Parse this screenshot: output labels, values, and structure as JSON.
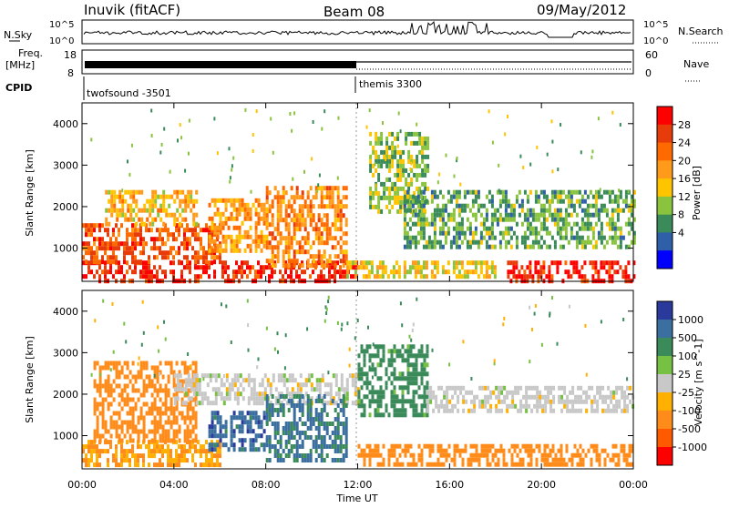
{
  "header": {
    "title": "Inuvik (fitACF)",
    "beam": "Beam 08",
    "date": "09/May/2012"
  },
  "top_panels": {
    "nsky_label": "N.Sky",
    "nsky_tick_top": "10^5",
    "nsky_tick_bottom": "10^0",
    "nsearch_label": "N.Search",
    "nsearch_tick_top": "10^5",
    "nsearch_tick_bottom": "10^0",
    "freq_label": "Freq.",
    "freq_unit": "[MHz]",
    "freq_tick_top": "18",
    "freq_tick_bottom": "8",
    "nave_label": "Nave",
    "nave_tick_top": "60",
    "nave_tick_bottom": "0",
    "cpid_label": "CPID",
    "cpid_left": "twofsound -3501",
    "cpid_right": "themis 3300"
  },
  "power_colorbar": {
    "label": "Power [dB]",
    "ticks": [
      "28",
      "24",
      "20",
      "16",
      "12",
      "8",
      "4"
    ],
    "colors": [
      "#ff0000",
      "#e83b0a",
      "#ff6a00",
      "#ff9a1a",
      "#ffc400",
      "#8ac43f",
      "#3a8a5a",
      "#2f5fa8",
      "#0000ff"
    ]
  },
  "velocity_colorbar": {
    "label": "Velocity [m s^-1]",
    "ticks": [
      "1000",
      "500",
      "100",
      "25",
      "-25",
      "-100",
      "-500",
      "-1000"
    ],
    "colors": [
      "#2a3a9c",
      "#3b6fa0",
      "#3a8a5a",
      "#76c043",
      "#c8c8c8",
      "#ffb000",
      "#ff8c1a",
      "#ff5a00",
      "#ff0000"
    ]
  },
  "axes": {
    "ylabel": "Slant Range [km]",
    "xlabel": "Time UT",
    "yticks": [
      "1000",
      "2000",
      "3000",
      "4000"
    ],
    "xticks": [
      "00:00",
      "04:00",
      "08:00",
      "12:00",
      "16:00",
      "20:00",
      "00:00"
    ]
  },
  "chart_data": [
    {
      "type": "heatmap",
      "title": "Power",
      "xlabel": "Time UT",
      "ylabel": "Slant Range [km]",
      "xlim": [
        0,
        24
      ],
      "ylim": [
        200,
        4500
      ],
      "colorbar_label": "Power [dB]",
      "regions": [
        {
          "t0": 0.0,
          "t1": 12.0,
          "r0": 250,
          "r1": 700,
          "value": 28
        },
        {
          "t0": 0.0,
          "t1": 6.0,
          "r0": 700,
          "r1": 1600,
          "value": 24
        },
        {
          "t0": 1.0,
          "t1": 5.0,
          "r0": 1600,
          "r1": 2400,
          "value": 16
        },
        {
          "t0": 5.5,
          "t1": 8.0,
          "r0": 900,
          "r1": 2200,
          "value": 18
        },
        {
          "t0": 8.0,
          "t1": 11.5,
          "r0": 600,
          "r1": 2500,
          "value": 20
        },
        {
          "t0": 11.5,
          "t1": 18.0,
          "r0": 300,
          "r1": 700,
          "value": 14
        },
        {
          "t0": 12.5,
          "t1": 15.0,
          "r0": 1900,
          "r1": 3800,
          "value": 10
        },
        {
          "t0": 14.0,
          "t1": 24.0,
          "r0": 1000,
          "r1": 2400,
          "value": 8
        },
        {
          "t0": 18.5,
          "t1": 24.0,
          "r0": 250,
          "r1": 700,
          "value": 28
        }
      ]
    },
    {
      "type": "heatmap",
      "title": "Velocity",
      "xlabel": "Time UT",
      "ylabel": "Slant Range [km]",
      "xlim": [
        0,
        24
      ],
      "ylim": [
        200,
        4500
      ],
      "colorbar_label": "Velocity [m s^-1]",
      "regions": [
        {
          "t0": 0.0,
          "t1": 6.0,
          "r0": 300,
          "r1": 900,
          "value": -100
        },
        {
          "t0": 0.5,
          "t1": 5.0,
          "r0": 900,
          "r1": 2800,
          "value": -300
        },
        {
          "t0": 4.0,
          "t1": 12.0,
          "r0": 1800,
          "r1": 2500,
          "value": 0
        },
        {
          "t0": 5.5,
          "t1": 8.0,
          "r0": 700,
          "r1": 1600,
          "value": 800
        },
        {
          "t0": 8.0,
          "t1": 11.5,
          "r0": 400,
          "r1": 2000,
          "value": 600
        },
        {
          "t0": 12.0,
          "t1": 15.0,
          "r0": 1500,
          "r1": 3200,
          "value": 200
        },
        {
          "t0": 12.0,
          "t1": 24.0,
          "r0": 300,
          "r1": 800,
          "value": -150
        },
        {
          "t0": 15.0,
          "t1": 24.0,
          "r0": 1600,
          "r1": 2200,
          "value": 0
        }
      ]
    }
  ]
}
